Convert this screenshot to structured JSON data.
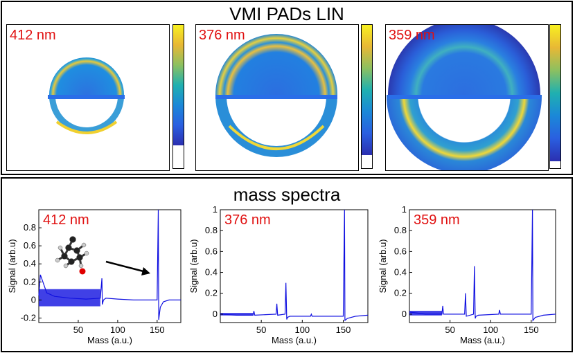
{
  "top": {
    "title": "VMI PADs LIN",
    "pads": [
      {
        "label": "412 nm",
        "colorbar_fill_fraction": 0.84
      },
      {
        "label": "376 nm",
        "colorbar_fill_fraction": 0.91
      },
      {
        "label": "359 nm",
        "colorbar_fill_fraction": 0.95
      }
    ]
  },
  "bottom": {
    "title": "mass spectra"
  },
  "chart_data": [
    {
      "type": "line",
      "title": "412 nm",
      "xlabel": "Mass (a.u.)",
      "ylabel": "Signal (arb.u)",
      "xlim": [
        0,
        180
      ],
      "ylim": [
        -0.25,
        1.0
      ],
      "xticks": [
        "50",
        "100",
        "150"
      ],
      "yticks": [
        "-0.2",
        "0",
        "0.2",
        "0.4",
        "0.6",
        "0.8"
      ],
      "series": [
        {
          "name": "412 nm",
          "color": "#1010e0",
          "x": [
            0,
            2,
            10,
            20,
            40,
            60,
            78,
            80,
            80.5,
            82,
            85,
            100,
            120,
            145,
            150,
            151.5,
            152,
            154,
            158,
            165,
            180
          ],
          "y": [
            0.05,
            0.28,
            0.08,
            0.04,
            0.02,
            0.01,
            0.02,
            0.24,
            -0.05,
            0.0,
            0.02,
            0.01,
            0.0,
            0.0,
            0.0,
            1.0,
            -0.22,
            -0.08,
            -0.02,
            0.0,
            0.0
          ]
        }
      ],
      "annotation": "arrow from molecule to peak at mass 152"
    },
    {
      "type": "line",
      "title": "376 nm",
      "xlabel": "Mass (a.u.)",
      "ylabel": "Signal (arb.u)",
      "xlim": [
        0,
        180
      ],
      "ylim": [
        -0.08,
        1.0
      ],
      "xticks": [
        "50",
        "100",
        "150"
      ],
      "yticks": [
        "0",
        "0.2",
        "0.4",
        "0.6",
        "0.8",
        "1"
      ],
      "series": [
        {
          "name": "376 nm",
          "color": "#1010e0",
          "x": [
            0,
            20,
            40,
            41,
            42,
            68,
            69,
            70,
            79,
            80,
            81,
            82,
            85,
            110,
            111,
            112,
            150,
            151.5,
            152,
            155,
            165,
            180
          ],
          "y": [
            0.0,
            -0.01,
            -0.01,
            0.03,
            -0.01,
            0.0,
            0.1,
            -0.01,
            0.0,
            0.3,
            -0.05,
            -0.03,
            -0.02,
            -0.02,
            0.0,
            -0.02,
            -0.02,
            1.0,
            -0.06,
            -0.04,
            -0.02,
            -0.01
          ]
        }
      ]
    },
    {
      "type": "line",
      "title": "359 nm",
      "xlabel": "Mass (a.u.)",
      "ylabel": "Signal (arb.u)",
      "xlim": [
        0,
        180
      ],
      "ylim": [
        -0.08,
        1.0
      ],
      "xticks": [
        "50",
        "100",
        "150"
      ],
      "yticks": [
        "0",
        "0.2",
        "0.4",
        "0.6",
        "0.8",
        "1"
      ],
      "series": [
        {
          "name": "359 nm",
          "color": "#1010e0",
          "x": [
            0,
            20,
            40,
            41,
            42,
            68,
            69,
            70,
            79,
            80,
            81,
            82,
            85,
            110,
            111,
            112,
            150,
            151.5,
            152,
            155,
            165,
            180
          ],
          "y": [
            0.02,
            0.0,
            0.0,
            0.08,
            0.0,
            0.0,
            0.2,
            -0.02,
            0.0,
            0.46,
            -0.04,
            -0.02,
            -0.01,
            0.0,
            0.04,
            0.0,
            0.0,
            1.0,
            -0.06,
            -0.03,
            -0.01,
            0.0
          ]
        }
      ]
    }
  ]
}
